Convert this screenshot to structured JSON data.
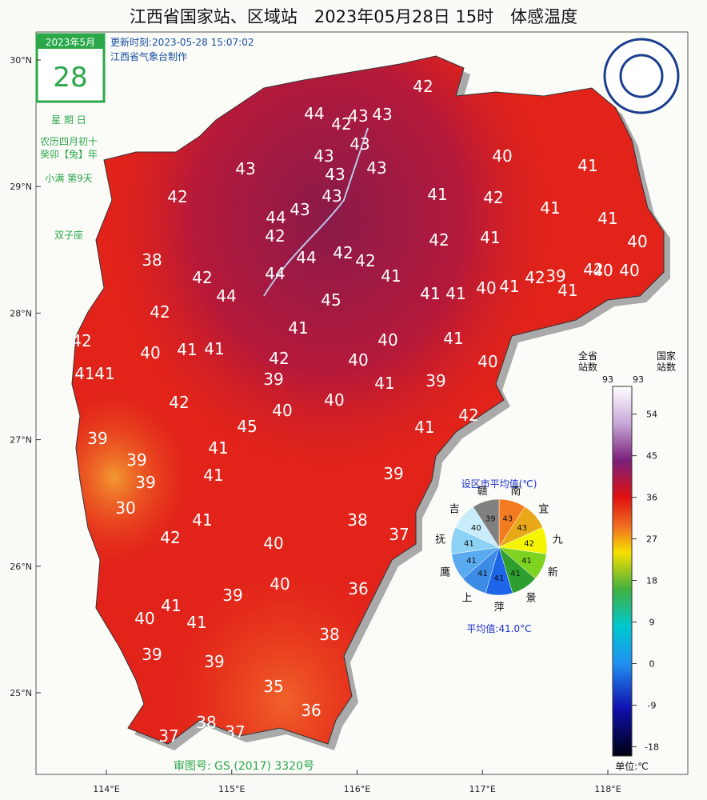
{
  "title": "江西省国家站、区域站　2023年05月28日 15时　体感温度",
  "calendar": {
    "month": "2023年5月",
    "day": "28",
    "weekday": "星 期 日",
    "lunar": "农历四月初十",
    "year": "癸卯【兔】年",
    "solar_term": "小满 第9天",
    "zodiac": "双子座"
  },
  "update_time": "更新时刻:2023-05-28 15:07:02",
  "producer": "江西省气象台制作",
  "approval": "审图号: GS (2017) 3320号",
  "axes": {
    "lat": [
      {
        "value": 30,
        "label": "30°N"
      },
      {
        "value": 29,
        "label": "29°N"
      },
      {
        "value": 28,
        "label": "28°N"
      },
      {
        "value": 27,
        "label": "27°N"
      },
      {
        "value": 26,
        "label": "26°N"
      },
      {
        "value": 25,
        "label": "25°N"
      }
    ],
    "lon": [
      {
        "value": 114,
        "label": "114°E"
      },
      {
        "value": 115,
        "label": "115°E"
      },
      {
        "value": 116,
        "label": "116°E"
      },
      {
        "value": 117,
        "label": "117°E"
      },
      {
        "value": 118,
        "label": "118°E"
      }
    ]
  },
  "stations": [
    42,
    44,
    43,
    43,
    42,
    43,
    43,
    40,
    41,
    43,
    43,
    43,
    42,
    43,
    41,
    42,
    41,
    44,
    43,
    41,
    42,
    42,
    41,
    40,
    42,
    44,
    42,
    38,
    44,
    41,
    42,
    42,
    39,
    42,
    40,
    40,
    44,
    45,
    41,
    41,
    40,
    41,
    41,
    42,
    41,
    42,
    40,
    41,
    41,
    40,
    41,
    40,
    42,
    40,
    41,
    41,
    39,
    41,
    39,
    42,
    40,
    40,
    42,
    45,
    41,
    39,
    41,
    39,
    41,
    39,
    39,
    30,
    41,
    38,
    37,
    42,
    40,
    36,
    40,
    39,
    41,
    40,
    41,
    38,
    39,
    39,
    35,
    36,
    38,
    37,
    37
  ],
  "pie": {
    "title": "设区市平均值(℃)",
    "average": "平均值:41.0°C",
    "slices": [
      {
        "name": "南",
        "value": 43,
        "color": "#f47c20"
      },
      {
        "name": "宜",
        "value": 43,
        "color": "#e8a818"
      },
      {
        "name": "九",
        "value": 42,
        "color": "#f5f500"
      },
      {
        "name": "新",
        "value": 41,
        "color": "#7ed321"
      },
      {
        "name": "景",
        "value": 41,
        "color": "#2e9e2e"
      },
      {
        "name": "萍",
        "value": 41,
        "color": "#1e64e6"
      },
      {
        "name": "上",
        "value": 41,
        "color": "#3c8ce6"
      },
      {
        "name": "鹰",
        "value": 41,
        "color": "#5aaaf0"
      },
      {
        "name": "抚",
        "value": 41,
        "color": "#8cd2f5"
      },
      {
        "name": "吉",
        "value": 40,
        "color": "#c8ecfa"
      },
      {
        "name": "赣",
        "value": 39,
        "color": "#808080"
      }
    ]
  },
  "colorbar": {
    "lim": [
      -20,
      60
    ],
    "ticks": [
      54,
      45,
      36,
      27,
      18,
      9,
      0,
      -9,
      -18
    ],
    "unit": "单位:℃",
    "province_header": [
      "全省",
      "站数"
    ],
    "national_header": [
      "国家",
      "站数"
    ],
    "province_count": 93,
    "national_count": 93
  }
}
